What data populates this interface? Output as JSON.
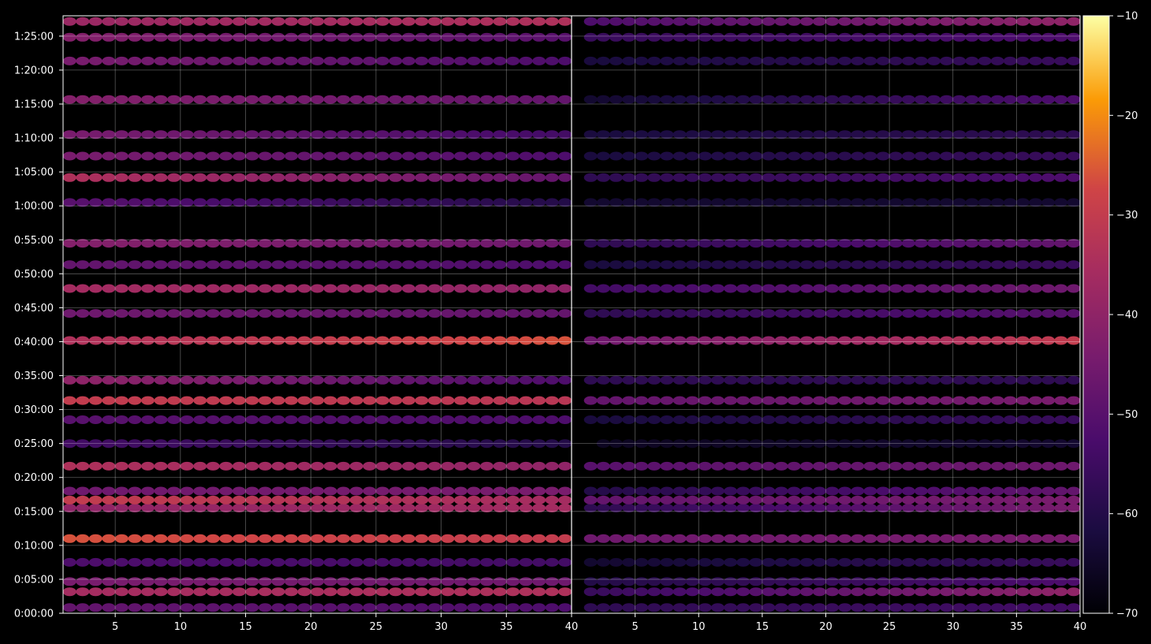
{
  "chart_data": {
    "type": "heatmap",
    "title": "",
    "xlabel": "",
    "ylabel": "",
    "panels": [
      {
        "name": "",
        "xlim": [
          1,
          40
        ]
      },
      {
        "name": "",
        "xlim": [
          0,
          40
        ]
      }
    ],
    "x_ticks_left": [
      "5",
      "10",
      "15",
      "20",
      "25",
      "30",
      "35",
      "40"
    ],
    "x_tick_values_left": [
      5,
      10,
      15,
      20,
      25,
      30,
      35,
      40
    ],
    "x_ticks_right": [
      "5",
      "10",
      "15",
      "20",
      "25",
      "30",
      "35",
      "40"
    ],
    "x_tick_values_right": [
      5,
      10,
      15,
      20,
      25,
      30,
      35,
      40
    ],
    "y_ticks": [
      "0:00:00",
      "0:05:00",
      "0:10:00",
      "0:15:00",
      "0:20:00",
      "0:25:00",
      "0:30:00",
      "0:35:00",
      "0:40:00",
      "0:45:00",
      "0:50:00",
      "0:55:00",
      "1:00:00",
      "1:05:00",
      "1:10:00",
      "1:15:00",
      "1:20:00",
      "1:25:00"
    ],
    "y_tick_seconds": [
      0,
      300,
      600,
      900,
      1200,
      1500,
      1800,
      2100,
      2400,
      2700,
      3000,
      3300,
      3600,
      3900,
      4200,
      4500,
      4800,
      5100
    ],
    "ylim_seconds": [
      0,
      5280
    ],
    "colorbar": {
      "colormap": "inferno",
      "range": [
        -70,
        -10
      ],
      "ticks": [
        "−10",
        "−20",
        "−30",
        "−40",
        "−50",
        "−60",
        "−70"
      ],
      "tick_values": [
        -10,
        -20,
        -30,
        -40,
        -50,
        -60,
        -70
      ]
    },
    "grid": true,
    "rows": [
      {
        "t": 50,
        "left": [
          -48,
          -52
        ],
        "right": [
          -58,
          -54
        ]
      },
      {
        "t": 190,
        "left": [
          -36,
          -34
        ],
        "right": [
          -56,
          -40
        ]
      },
      {
        "t": 280,
        "left": [
          -44,
          -46
        ],
        "right": [
          -60,
          -52
        ]
      },
      {
        "t": 450,
        "left": [
          -52,
          -54
        ],
        "right": [
          -64,
          -56
        ]
      },
      {
        "t": 660,
        "left": [
          -26,
          -30
        ],
        "right": [
          -46,
          -44
        ]
      },
      {
        "t": 930,
        "left": [
          -40,
          -36
        ],
        "right": [
          -58,
          -44
        ]
      },
      {
        "t": 1000,
        "left": [
          -30,
          -36
        ],
        "right": [
          -48,
          -44
        ]
      },
      {
        "t": 1080,
        "left": [
          -46,
          -44
        ],
        "right": [
          -60,
          -48
        ]
      },
      {
        "t": 1300,
        "left": [
          -34,
          -40
        ],
        "right": [
          -50,
          -46
        ]
      },
      {
        "t": 1500,
        "left": [
          -54,
          -60
        ],
        "right": [
          -66,
          -64
        ]
      },
      {
        "t": 1710,
        "left": [
          -50,
          -52
        ],
        "right": [
          -62,
          -56
        ]
      },
      {
        "t": 1880,
        "left": [
          -30,
          -32
        ],
        "right": [
          -48,
          -44
        ]
      },
      {
        "t": 2060,
        "left": [
          -40,
          -52
        ],
        "right": [
          -58,
          -58
        ]
      },
      {
        "t": 2410,
        "left": [
          -34,
          -26
        ],
        "right": [
          -46,
          -30
        ]
      },
      {
        "t": 2650,
        "left": [
          -46,
          -48
        ],
        "right": [
          -58,
          -50
        ]
      },
      {
        "t": 2870,
        "left": [
          -36,
          -40
        ],
        "right": [
          -54,
          -46
        ]
      },
      {
        "t": 3080,
        "left": [
          -48,
          -52
        ],
        "right": [
          -62,
          -56
        ]
      },
      {
        "t": 3270,
        "left": [
          -42,
          -46
        ],
        "right": [
          -58,
          -48
        ]
      },
      {
        "t": 3630,
        "left": [
          -50,
          -60
        ],
        "right": [
          -64,
          -64
        ]
      },
      {
        "t": 3850,
        "left": [
          -34,
          -48
        ],
        "right": [
          -58,
          -52
        ]
      },
      {
        "t": 4040,
        "left": [
          -44,
          -52
        ],
        "right": [
          -62,
          -56
        ]
      },
      {
        "t": 4230,
        "left": [
          -44,
          -54
        ],
        "right": [
          -62,
          -58
        ]
      },
      {
        "t": 4540,
        "left": [
          -42,
          -48
        ],
        "right": [
          -64,
          -52
        ]
      },
      {
        "t": 4880,
        "left": [
          -44,
          -52
        ],
        "right": [
          -62,
          -56
        ]
      },
      {
        "t": 5090,
        "left": [
          -42,
          -50
        ],
        "right": [
          -56,
          -52
        ]
      },
      {
        "t": 5230,
        "left": [
          -38,
          -34
        ],
        "right": [
          -52,
          -40
        ]
      }
    ]
  }
}
